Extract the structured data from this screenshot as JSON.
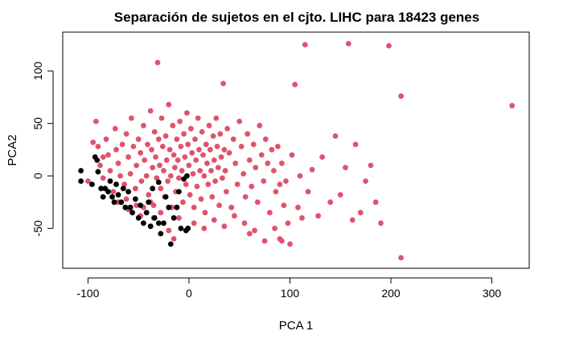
{
  "chart_data": {
    "type": "scatter",
    "title": "Separación de sujetos en el cjto. LIHC para 18423 genes",
    "xlabel": "PCA 1",
    "ylabel": "PCA2",
    "xlim": [
      -125,
      337
    ],
    "ylim": [
      -88,
      137
    ],
    "xticks": [
      -100,
      0,
      100,
      200,
      300
    ],
    "yticks": [
      -50,
      0,
      50,
      100
    ],
    "xtick_labels": [
      "-100",
      "0",
      "100",
      "200",
      "300"
    ],
    "ytick_labels": [
      "-50",
      "0",
      "50",
      "100"
    ],
    "grid": false,
    "legend": false,
    "series": [
      {
        "color": "#DF536B",
        "points": [
          [
            -100,
            -5
          ],
          [
            -95,
            32
          ],
          [
            -92,
            52
          ],
          [
            -90,
            28
          ],
          [
            -88,
            10
          ],
          [
            -85,
            -2
          ],
          [
            -82,
            35
          ],
          [
            -80,
            20
          ],
          [
            -78,
            5
          ],
          [
            -75,
            -15
          ],
          [
            -73,
            45
          ],
          [
            -72,
            25
          ],
          [
            -70,
            12
          ],
          [
            -68,
            0
          ],
          [
            -66,
            30
          ],
          [
            -64,
            -8
          ],
          [
            -62,
            40
          ],
          [
            -60,
            18
          ],
          [
            -58,
            2
          ],
          [
            -57,
            55
          ],
          [
            -55,
            28
          ],
          [
            -53,
            -12
          ],
          [
            -52,
            10
          ],
          [
            -50,
            35
          ],
          [
            -48,
            22
          ],
          [
            -47,
            -5
          ],
          [
            -45,
            48
          ],
          [
            -44,
            15
          ],
          [
            -42,
            0
          ],
          [
            -41,
            30
          ],
          [
            -40,
            -18
          ],
          [
            -38,
            62
          ],
          [
            -37,
            25
          ],
          [
            -36,
            8
          ],
          [
            -35,
            -28
          ],
          [
            -34,
            42
          ],
          [
            -33,
            18
          ],
          [
            -32,
            -2
          ],
          [
            -31,
            108
          ],
          [
            -30,
            35
          ],
          [
            -29,
            10
          ],
          [
            -28,
            -12
          ],
          [
            -27,
            55
          ],
          [
            -26,
            28
          ],
          [
            -25,
            5
          ],
          [
            -24,
            -20
          ],
          [
            -23,
            38
          ],
          [
            -22,
            15
          ],
          [
            -21,
            -5
          ],
          [
            -20,
            68
          ],
          [
            -19,
            25
          ],
          [
            -18,
            0
          ],
          [
            -17,
            -30
          ],
          [
            -16,
            48
          ],
          [
            -15,
            20
          ],
          [
            -14,
            8
          ],
          [
            -13,
            -15
          ],
          [
            -12,
            35
          ],
          [
            -11,
            15
          ],
          [
            -10,
            -2
          ],
          [
            -9,
            52
          ],
          [
            -8,
            28
          ],
          [
            -7,
            5
          ],
          [
            -6,
            -25
          ],
          [
            -5,
            40
          ],
          [
            -4,
            18
          ],
          [
            -3,
            -8
          ],
          [
            -2,
            60
          ],
          [
            -1,
            30
          ],
          [
            0,
            10
          ],
          [
            1,
            -18
          ],
          [
            2,
            45
          ],
          [
            3,
            22
          ],
          [
            4,
            2
          ],
          [
            5,
            -30
          ],
          [
            6,
            35
          ],
          [
            7,
            15
          ],
          [
            8,
            -10
          ],
          [
            9,
            55
          ],
          [
            10,
            25
          ],
          [
            11,
            5
          ],
          [
            12,
            -22
          ],
          [
            13,
            42
          ],
          [
            14,
            20
          ],
          [
            15,
            0
          ],
          [
            16,
            -35
          ],
          [
            17,
            30
          ],
          [
            18,
            12
          ],
          [
            19,
            -8
          ],
          [
            20,
            48
          ],
          [
            21,
            25
          ],
          [
            22,
            5
          ],
          [
            23,
            -20
          ],
          [
            24,
            38
          ],
          [
            25,
            15
          ],
          [
            26,
            -5
          ],
          [
            27,
            55
          ],
          [
            28,
            28
          ],
          [
            29,
            8
          ],
          [
            30,
            -28
          ],
          [
            31,
            40
          ],
          [
            32,
            18
          ],
          [
            33,
            -2
          ],
          [
            34,
            88
          ],
          [
            35,
            25
          ],
          [
            36,
            5
          ],
          [
            37,
            -15
          ],
          [
            38,
            45
          ],
          [
            40,
            22
          ],
          [
            42,
            -30
          ],
          [
            44,
            35
          ],
          [
            46,
            12
          ],
          [
            48,
            -8
          ],
          [
            50,
            52
          ],
          [
            52,
            28
          ],
          [
            54,
            2
          ],
          [
            56,
            -20
          ],
          [
            58,
            40
          ],
          [
            60,
            15
          ],
          [
            62,
            -10
          ],
          [
            64,
            30
          ],
          [
            66,
            8
          ],
          [
            68,
            -25
          ],
          [
            70,
            48
          ],
          [
            72,
            20
          ],
          [
            74,
            -5
          ],
          [
            76,
            35
          ],
          [
            78,
            12
          ],
          [
            80,
            -35
          ],
          [
            82,
            25
          ],
          [
            84,
            5
          ],
          [
            86,
            -15
          ],
          [
            88,
            28
          ],
          [
            90,
            -8
          ],
          [
            92,
            12
          ],
          [
            94,
            -28
          ],
          [
            96,
            -5
          ],
          [
            98,
            -45
          ],
          [
            100,
            -65
          ],
          [
            102,
            20
          ],
          [
            105,
            87
          ],
          [
            108,
            -30
          ],
          [
            110,
            0
          ],
          [
            112,
            -40
          ],
          [
            115,
            125
          ],
          [
            118,
            -15
          ],
          [
            122,
            6
          ],
          [
            128,
            -38
          ],
          [
            132,
            18
          ],
          [
            140,
            -25
          ],
          [
            145,
            38
          ],
          [
            150,
            -18
          ],
          [
            155,
            8
          ],
          [
            158,
            126
          ],
          [
            162,
            -42
          ],
          [
            165,
            30
          ],
          [
            170,
            -35
          ],
          [
            175,
            -5
          ],
          [
            180,
            10
          ],
          [
            185,
            -25
          ],
          [
            190,
            -45
          ],
          [
            198,
            124
          ],
          [
            210,
            76
          ],
          [
            210,
            -78
          ],
          [
            320,
            67
          ],
          [
            -20,
            -52
          ],
          [
            -35,
            -40
          ],
          [
            -15,
            -60
          ],
          [
            75,
            -62
          ],
          [
            60,
            -55
          ],
          [
            -62,
            -22
          ],
          [
            -52,
            -28
          ],
          [
            -45,
            -30
          ],
          [
            -48,
            -38
          ],
          [
            -38,
            -25
          ],
          [
            -28,
            -35
          ],
          [
            -10,
            -40
          ],
          [
            5,
            -45
          ],
          [
            15,
            -50
          ],
          [
            25,
            -42
          ],
          [
            35,
            -48
          ],
          [
            45,
            -38
          ],
          [
            55,
            -45
          ],
          [
            65,
            -52
          ],
          [
            85,
            -50
          ],
          [
            90,
            -60
          ],
          [
            92,
            -62
          ],
          [
            -85,
            18
          ],
          [
            -70,
            -25
          ],
          [
            -60,
            -32
          ]
        ]
      },
      {
        "color": "#000000",
        "points": [
          [
            -107,
            5
          ],
          [
            -107,
            -5
          ],
          [
            -96,
            -8
          ],
          [
            -93,
            18
          ],
          [
            -91,
            15
          ],
          [
            -90,
            4
          ],
          [
            -87,
            -12
          ],
          [
            -85,
            -20
          ],
          [
            -83,
            -12
          ],
          [
            -80,
            -15
          ],
          [
            -78,
            -5
          ],
          [
            -76,
            -20
          ],
          [
            -74,
            -25
          ],
          [
            -72,
            -8
          ],
          [
            -70,
            -18
          ],
          [
            -67,
            -25
          ],
          [
            -65,
            -12
          ],
          [
            -63,
            -30
          ],
          [
            -60,
            -15
          ],
          [
            -58,
            -30
          ],
          [
            -56,
            -35
          ],
          [
            -53,
            -22
          ],
          [
            -50,
            -40
          ],
          [
            -48,
            -28
          ],
          [
            -45,
            -45
          ],
          [
            -42,
            -35
          ],
          [
            -40,
            -25
          ],
          [
            -38,
            -48
          ],
          [
            -36,
            -12
          ],
          [
            -34,
            -40
          ],
          [
            -30,
            -45
          ],
          [
            -28,
            -55
          ],
          [
            -25,
            -45
          ],
          [
            -23,
            -20
          ],
          [
            -20,
            -30
          ],
          [
            -18,
            -65
          ],
          [
            -15,
            -40
          ],
          [
            -12,
            -30
          ],
          [
            -10,
            -15
          ],
          [
            -8,
            -50
          ],
          [
            -5,
            -3
          ],
          [
            -3,
            -52
          ],
          [
            -1,
            -50
          ],
          [
            -2,
            0
          ],
          [
            -30,
            -6
          ]
        ]
      }
    ]
  }
}
